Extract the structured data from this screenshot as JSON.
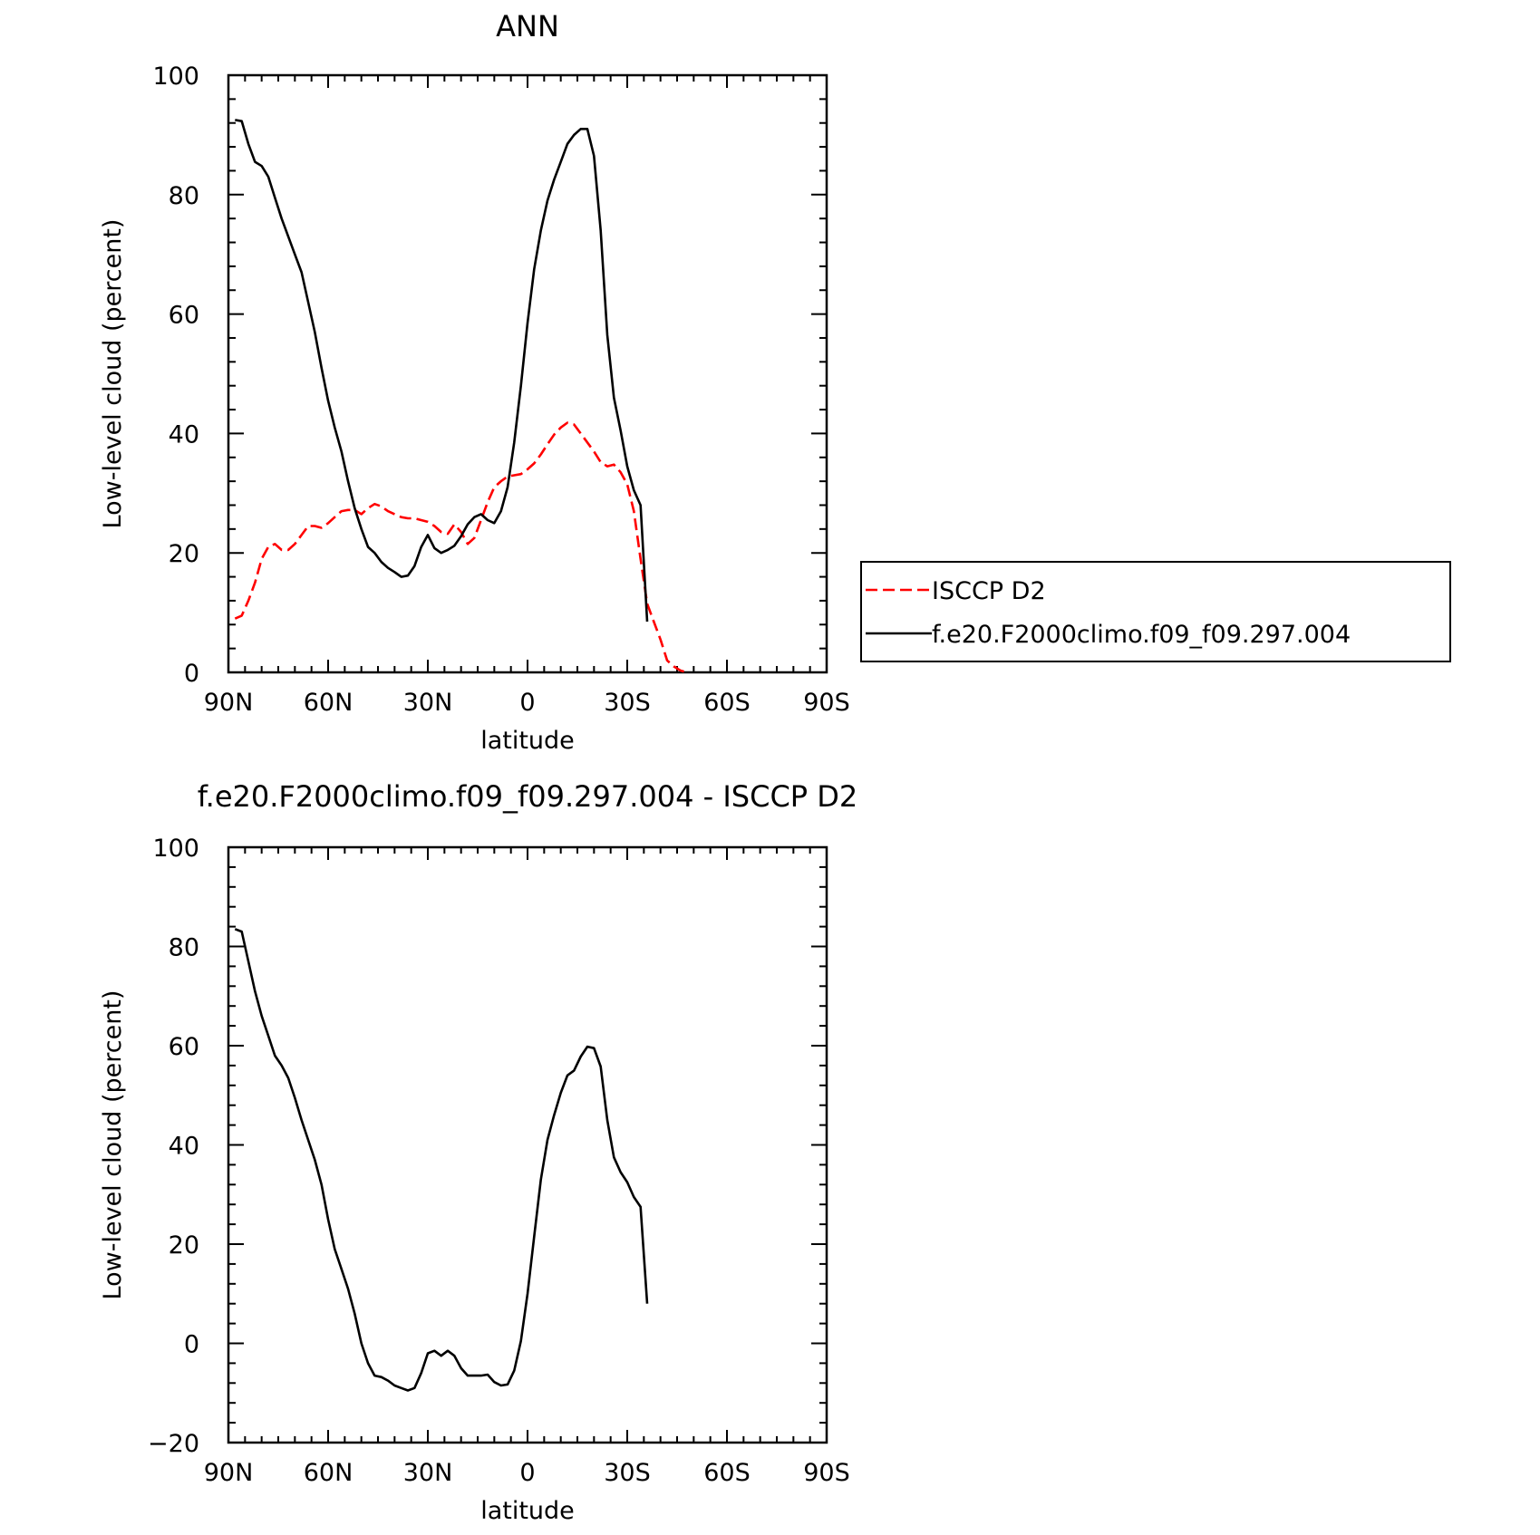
{
  "chart_data": [
    {
      "type": "line",
      "title": "ANN",
      "xlabel": "latitude",
      "ylabel": "Low-level cloud (percent)",
      "xlim": [
        90,
        -90
      ],
      "ylim": [
        0,
        100
      ],
      "x_ticks": [
        {
          "value": 90,
          "label": "90N"
        },
        {
          "value": 60,
          "label": "60N"
        },
        {
          "value": 30,
          "label": "30N"
        },
        {
          "value": 0,
          "label": "0"
        },
        {
          "value": -30,
          "label": "30S"
        },
        {
          "value": -60,
          "label": "60S"
        },
        {
          "value": -90,
          "label": "90S"
        }
      ],
      "y_ticks": [
        0,
        20,
        40,
        60,
        80,
        100
      ],
      "y_tick_labels": [
        "0",
        "20",
        "40",
        "60",
        "80",
        "100"
      ],
      "legend_position": "right",
      "series": [
        {
          "name": "ISCCP D2",
          "color": "#ff0000",
          "dash": "dashed",
          "points": [
            [
              88,
              9
            ],
            [
              86,
              9.5
            ],
            [
              84,
              12
            ],
            [
              82,
              15
            ],
            [
              80,
              19
            ],
            [
              78,
              21
            ],
            [
              76,
              21.5
            ],
            [
              74,
              20.5
            ],
            [
              72,
              20.5
            ],
            [
              70,
              21.5
            ],
            [
              68,
              23
            ],
            [
              66,
              24.5
            ],
            [
              64,
              24.5
            ],
            [
              62,
              24.2
            ],
            [
              60,
              25
            ],
            [
              58,
              26
            ],
            [
              56,
              27
            ],
            [
              54,
              27.2
            ],
            [
              52,
              27.2
            ],
            [
              50,
              26.5
            ],
            [
              48,
              27.5
            ],
            [
              46,
              28.2
            ],
            [
              44,
              27.8
            ],
            [
              42,
              27
            ],
            [
              40,
              26.5
            ],
            [
              38,
              26
            ],
            [
              36,
              25.8
            ],
            [
              34,
              25.8
            ],
            [
              32,
              25.5
            ],
            [
              30,
              25.2
            ],
            [
              28,
              24.5
            ],
            [
              26,
              23.5
            ],
            [
              24,
              23.2
            ],
            [
              22,
              24.8
            ],
            [
              20,
              23.5
            ],
            [
              18,
              21.5
            ],
            [
              16,
              22.5
            ],
            [
              14,
              25.5
            ],
            [
              12,
              28.5
            ],
            [
              10,
              31
            ],
            [
              8,
              32
            ],
            [
              6,
              32.8
            ],
            [
              4,
              33
            ],
            [
              2,
              33.2
            ],
            [
              0,
              34
            ],
            [
              -2,
              35
            ],
            [
              -4,
              36.5
            ],
            [
              -6,
              38.2
            ],
            [
              -8,
              39.8
            ],
            [
              -10,
              41
            ],
            [
              -12,
              41.8
            ],
            [
              -14,
              41.5
            ],
            [
              -16,
              40
            ],
            [
              -18,
              38.5
            ],
            [
              -20,
              37
            ],
            [
              -22,
              35.2
            ],
            [
              -24,
              34.5
            ],
            [
              -26,
              34.8
            ],
            [
              -28,
              33.5
            ],
            [
              -30,
              31.5
            ],
            [
              -32,
              27
            ],
            [
              -34,
              19
            ],
            [
              -36,
              11.5
            ],
            [
              -38,
              8.5
            ],
            [
              -40,
              5.5
            ],
            [
              -42,
              2
            ],
            [
              -44,
              1
            ],
            [
              -46,
              0.3
            ],
            [
              -48,
              0
            ]
          ]
        },
        {
          "name": "f.e20.F2000climo.f09_f09.297.004",
          "color": "#000000",
          "dash": "solid",
          "points": [
            [
              88,
              92.5
            ],
            [
              86,
              92.3
            ],
            [
              84,
              88.5
            ],
            [
              82,
              85.5
            ],
            [
              80,
              84.8
            ],
            [
              78,
              83
            ],
            [
              76,
              79.5
            ],
            [
              74,
              76
            ],
            [
              72,
              73
            ],
            [
              70,
              70
            ],
            [
              68,
              67
            ],
            [
              66,
              62
            ],
            [
              64,
              57
            ],
            [
              62,
              51
            ],
            [
              60,
              45.5
            ],
            [
              58,
              41
            ],
            [
              56,
              37
            ],
            [
              54,
              32
            ],
            [
              52,
              27.5
            ],
            [
              50,
              24
            ],
            [
              48,
              21
            ],
            [
              46,
              20
            ],
            [
              44,
              18.5
            ],
            [
              42,
              17.5
            ],
            [
              40,
              16.8
            ],
            [
              38,
              16
            ],
            [
              36,
              16.2
            ],
            [
              34,
              17.8
            ],
            [
              32,
              21
            ],
            [
              30,
              23
            ],
            [
              28,
              20.8
            ],
            [
              26,
              20
            ],
            [
              24,
              20.5
            ],
            [
              22,
              21.2
            ],
            [
              20,
              22.8
            ],
            [
              18,
              24.8
            ],
            [
              16,
              26
            ],
            [
              14,
              26.5
            ],
            [
              12,
              25.5
            ],
            [
              10,
              25
            ],
            [
              8,
              27
            ],
            [
              6,
              31
            ],
            [
              4,
              38.5
            ],
            [
              2,
              48
            ],
            [
              0,
              58.5
            ],
            [
              -2,
              67.5
            ],
            [
              -4,
              74
            ],
            [
              -6,
              79
            ],
            [
              -8,
              82.5
            ],
            [
              -10,
              85.5
            ],
            [
              -12,
              88.5
            ],
            [
              -14,
              90
            ],
            [
              -16,
              91
            ],
            [
              -18,
              91
            ],
            [
              -20,
              86.5
            ],
            [
              -22,
              74
            ],
            [
              -24,
              56.5
            ],
            [
              -26,
              46
            ],
            [
              -28,
              40.5
            ],
            [
              -30,
              34.5
            ],
            [
              -32,
              30.5
            ],
            [
              -34,
              28
            ],
            [
              -36,
              8.5
            ]
          ]
        }
      ]
    },
    {
      "type": "line",
      "title": "f.e20.F2000climo.f09_f09.297.004 - ISCCP D2",
      "xlabel": "latitude",
      "ylabel": "Low-level cloud (percent)",
      "xlim": [
        90,
        -90
      ],
      "ylim": [
        -20,
        100
      ],
      "x_ticks": [
        {
          "value": 90,
          "label": "90N"
        },
        {
          "value": 60,
          "label": "60N"
        },
        {
          "value": 30,
          "label": "30N"
        },
        {
          "value": 0,
          "label": "0"
        },
        {
          "value": -30,
          "label": "30S"
        },
        {
          "value": -60,
          "label": "60S"
        },
        {
          "value": -90,
          "label": "90S"
        }
      ],
      "y_ticks": [
        -20,
        0,
        20,
        40,
        60,
        80,
        100
      ],
      "y_tick_labels": [
        "−20",
        "0",
        "20",
        "40",
        "60",
        "80",
        "100"
      ],
      "series": [
        {
          "color": "#000000",
          "dash": "solid",
          "points": [
            [
              88,
              83.5
            ],
            [
              86,
              83
            ],
            [
              84,
              77
            ],
            [
              82,
              71
            ],
            [
              80,
              66
            ],
            [
              78,
              62
            ],
            [
              76,
              58
            ],
            [
              74,
              56
            ],
            [
              72,
              53.5
            ],
            [
              70,
              49.5
            ],
            [
              68,
              45
            ],
            [
              66,
              41
            ],
            [
              64,
              37
            ],
            [
              62,
              32
            ],
            [
              60,
              25
            ],
            [
              58,
              19
            ],
            [
              56,
              15
            ],
            [
              54,
              11
            ],
            [
              52,
              6
            ],
            [
              50,
              0
            ],
            [
              48,
              -4
            ],
            [
              46,
              -6.5
            ],
            [
              44,
              -6.8
            ],
            [
              42,
              -7.5
            ],
            [
              40,
              -8.5
            ],
            [
              38,
              -9
            ],
            [
              36,
              -9.5
            ],
            [
              34,
              -9
            ],
            [
              32,
              -6
            ],
            [
              30,
              -2
            ],
            [
              28,
              -1.5
            ],
            [
              26,
              -2.5
            ],
            [
              24,
              -1.5
            ],
            [
              22,
              -2.5
            ],
            [
              20,
              -5
            ],
            [
              18,
              -6.5
            ],
            [
              16,
              -6.5
            ],
            [
              14,
              -6.5
            ],
            [
              12,
              -6.3
            ],
            [
              10,
              -7.8
            ],
            [
              8,
              -8.5
            ],
            [
              6,
              -8.3
            ],
            [
              4,
              -5.5
            ],
            [
              2,
              0.5
            ],
            [
              0,
              10
            ],
            [
              -2,
              21.5
            ],
            [
              -4,
              33
            ],
            [
              -6,
              41
            ],
            [
              -8,
              46
            ],
            [
              -10,
              50.5
            ],
            [
              -12,
              54
            ],
            [
              -14,
              55
            ],
            [
              -16,
              57.8
            ],
            [
              -18,
              59.8
            ],
            [
              -20,
              59.5
            ],
            [
              -22,
              55.8
            ],
            [
              -24,
              45
            ],
            [
              -26,
              37.5
            ],
            [
              -28,
              34.5
            ],
            [
              -30,
              32.5
            ],
            [
              -32,
              29.5
            ],
            [
              -34,
              27.5
            ],
            [
              -36,
              8
            ]
          ]
        }
      ]
    }
  ]
}
